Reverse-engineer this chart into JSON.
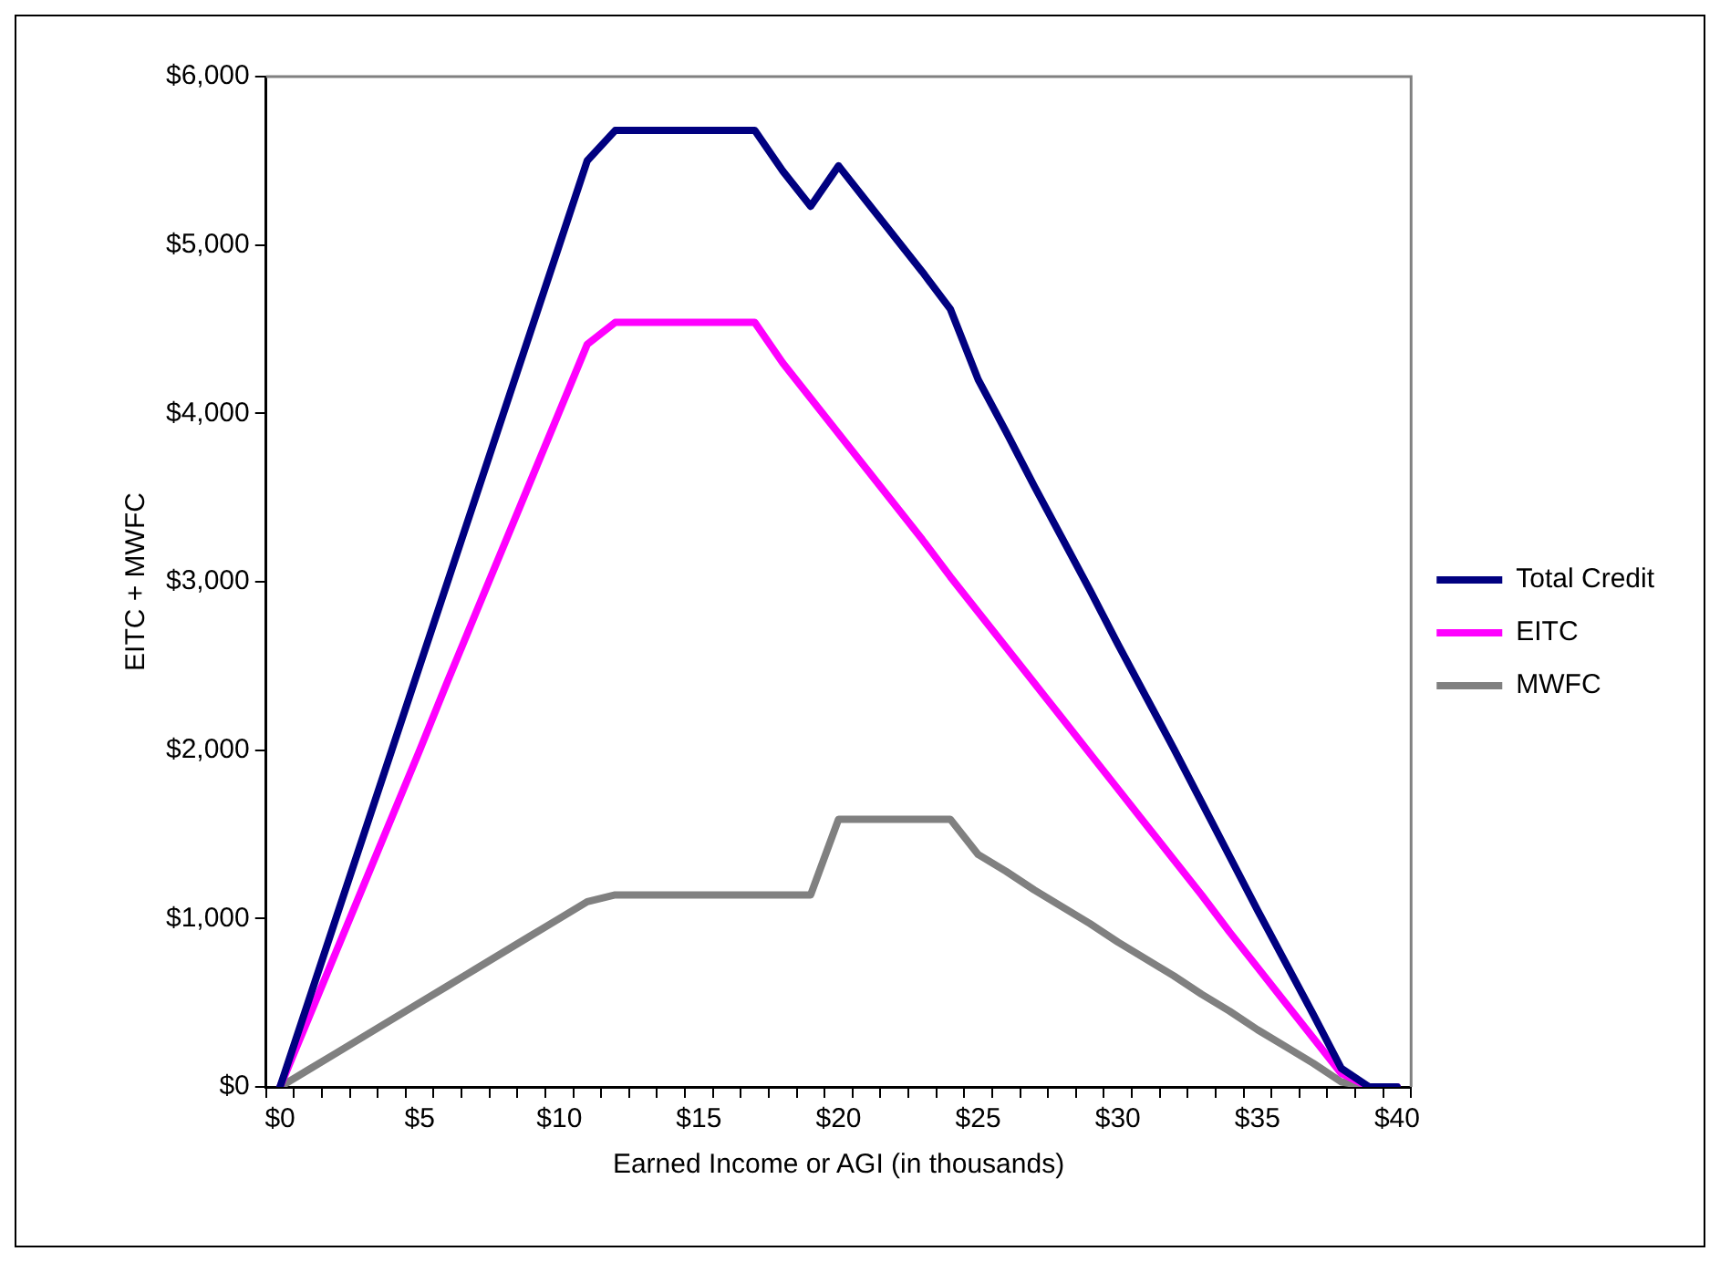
{
  "chart_data": {
    "type": "line",
    "xlabel": "Earned Income or AGI (in thousands)",
    "ylabel": "EITC + MWFC",
    "categories": [
      "$0",
      null,
      null,
      null,
      null,
      "$5",
      null,
      null,
      null,
      null,
      "$10",
      null,
      null,
      null,
      null,
      "$15",
      null,
      null,
      null,
      null,
      "$20",
      null,
      null,
      null,
      null,
      "$25",
      null,
      null,
      null,
      null,
      "$30",
      null,
      null,
      null,
      null,
      "$35",
      null,
      null,
      null,
      null,
      "$40"
    ],
    "ylim": [
      0,
      6000
    ],
    "yticks": [
      {
        "value": 0,
        "label": "$0"
      },
      {
        "value": 1000,
        "label": "$1,000"
      },
      {
        "value": 2000,
        "label": "$2,000"
      },
      {
        "value": 3000,
        "label": "$3,000"
      },
      {
        "value": 4000,
        "label": "$4,000"
      },
      {
        "value": 5000,
        "label": "$5,000"
      },
      {
        "value": 6000,
        "label": "$6,000"
      }
    ],
    "grid": false,
    "legend": "right",
    "marker": "none",
    "line_style": "solid",
    "series": [
      {
        "name": "Total Credit",
        "color": "#000080",
        "values": [
          0,
          500,
          1000,
          1500,
          2000,
          2500,
          3000,
          3500,
          4000,
          4500,
          5000,
          5500,
          5680,
          5680,
          5680,
          5680,
          5680,
          5680,
          5440,
          5230,
          5470,
          5260,
          5050,
          4840,
          4620,
          4200,
          3890,
          3570,
          3260,
          2950,
          2630,
          2320,
          2010,
          1690,
          1370,
          1050,
          740,
          430,
          110,
          0,
          0
        ]
      },
      {
        "name": "EITC",
        "color": "#ff00ff",
        "values": [
          0,
          400,
          800,
          1200,
          1600,
          2000,
          2410,
          2810,
          3210,
          3610,
          4010,
          4410,
          4540,
          4540,
          4540,
          4540,
          4540,
          4540,
          4300,
          4090,
          3880,
          3670,
          3460,
          3250,
          3030,
          2820,
          2610,
          2400,
          2190,
          1980,
          1770,
          1560,
          1350,
          1140,
          920,
          710,
          500,
          290,
          80,
          0,
          0
        ]
      },
      {
        "name": "MWFC",
        "color": "#808080",
        "values": [
          0,
          100,
          200,
          300,
          400,
          500,
          600,
          700,
          800,
          900,
          1000,
          1100,
          1140,
          1140,
          1140,
          1140,
          1140,
          1140,
          1140,
          1140,
          1590,
          1590,
          1590,
          1590,
          1590,
          1380,
          1280,
          1170,
          1070,
          970,
          860,
          760,
          660,
          550,
          450,
          340,
          240,
          140,
          30,
          0,
          0
        ]
      }
    ]
  }
}
